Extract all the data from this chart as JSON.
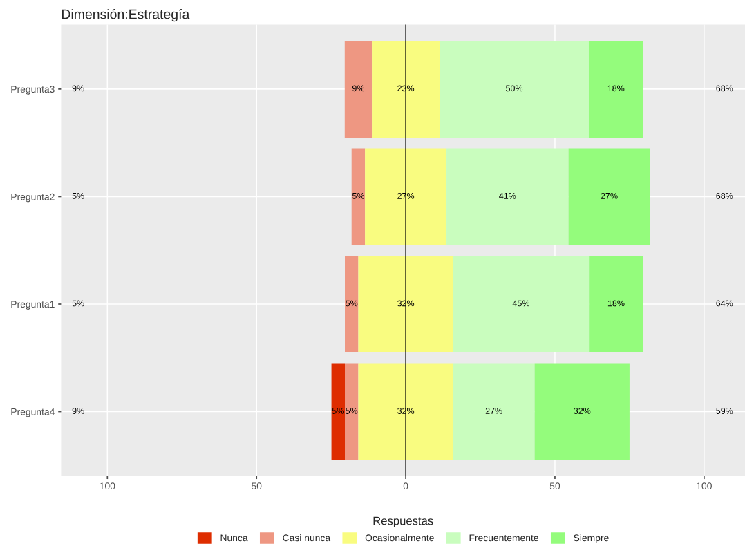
{
  "chart_data": {
    "type": "bar",
    "orientation": "horizontal",
    "title": "Dimensión:Estrategía",
    "legend_title": "Respuestas",
    "legend": "bottom",
    "grid": true,
    "categories": [
      "Pregunta3",
      "Pregunta2",
      "Pregunta1",
      "Pregunta4"
    ],
    "xlim": [
      -115.5,
      113.7
    ],
    "xticks": [
      {
        "value": -100,
        "label": "100"
      },
      {
        "value": -50,
        "label": "50"
      },
      0,
      50,
      100
    ],
    "series": [
      {
        "name": "Nunca",
        "color": "#de2d00",
        "values": [
          null,
          null,
          null,
          4.5
        ],
        "base": [
          null,
          null,
          null,
          -24.9
        ],
        "value_labels": [
          null,
          null,
          null,
          "5%"
        ]
      },
      {
        "name": "Casi nunca",
        "color": "#ee9782",
        "values": [
          9.1,
          4.5,
          4.5,
          4.5
        ],
        "base": [
          -20.45,
          -18.15,
          -20.4,
          -20.4
        ],
        "value_labels": [
          "9%",
          "5%",
          "5%",
          "5%"
        ]
      },
      {
        "name": "Ocasionalmente",
        "color": "#f9fc80",
        "values": [
          22.7,
          27.3,
          31.8,
          31.8
        ],
        "base": [
          -11.35,
          -13.65,
          -15.9,
          -15.9
        ],
        "value_labels": [
          "23%",
          "27%",
          "32%",
          "32%"
        ]
      },
      {
        "name": "Frecuentemente",
        "color": "#c9fdbe",
        "values": [
          50,
          40.9,
          45.5,
          27.3
        ],
        "base": [
          11.35,
          13.65,
          15.9,
          15.9
        ],
        "value_labels": [
          "50%",
          "41%",
          "45%",
          "27%"
        ]
      },
      {
        "name": "Siempre",
        "color": "#94fc7c",
        "values": [
          18.2,
          27.3,
          18.2,
          31.8
        ],
        "base": [
          61.35,
          54.55,
          61.4,
          43.2
        ],
        "value_labels": [
          "18%",
          "27%",
          "18%",
          "32%"
        ]
      }
    ],
    "ref_lines": [
      {
        "axis": "x",
        "value": 0,
        "color": "#000000"
      }
    ],
    "annotations": [
      "9%",
      "5%",
      "5%",
      "9%",
      "68%",
      "68%",
      "64%",
      "59%"
    ]
  }
}
